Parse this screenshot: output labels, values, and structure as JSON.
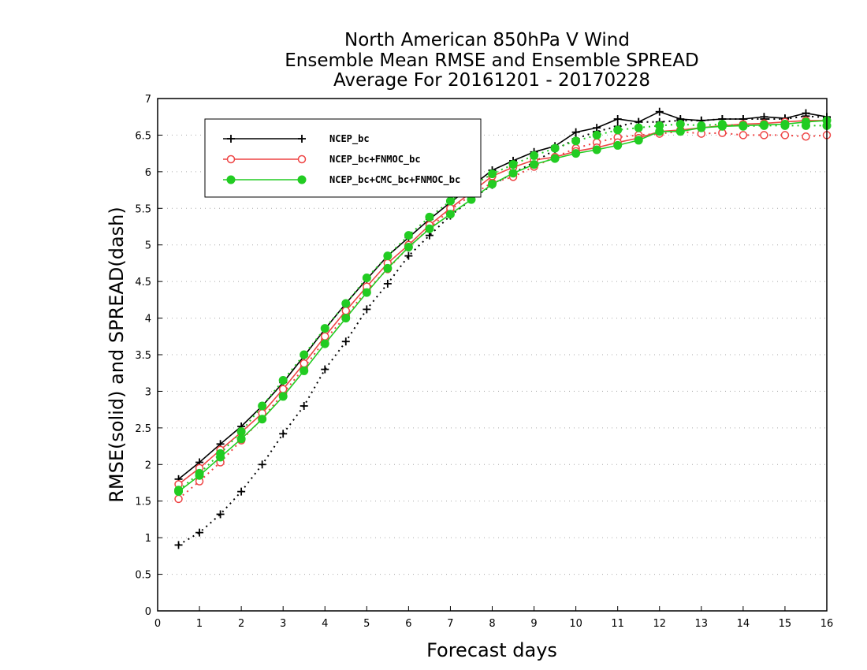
{
  "chart_data": {
    "type": "line",
    "title": [
      "North American 850hPa V Wind",
      "Ensemble Mean RMSE and Ensemble SPREAD",
      "Average For 20161201 - 20170228"
    ],
    "xlabel": "Forecast days",
    "ylabel": "RMSE(solid) and SPREAD(dash)",
    "xlim": [
      0,
      16
    ],
    "ylim": [
      0,
      7
    ],
    "x_ticks": [
      0,
      1,
      2,
      3,
      4,
      5,
      6,
      7,
      8,
      9,
      10,
      11,
      12,
      13,
      14,
      15,
      16
    ],
    "y_ticks": [
      0,
      0.5,
      1,
      1.5,
      2,
      2.5,
      3,
      3.5,
      4,
      4.5,
      5,
      5.5,
      6,
      6.5,
      7
    ],
    "grid": "horizontal dotted",
    "legend_position": "top-left",
    "x": [
      0.5,
      1,
      1.5,
      2,
      2.5,
      3,
      3.5,
      4,
      4.5,
      5,
      5.5,
      6,
      6.5,
      7,
      7.5,
      8,
      8.5,
      9,
      9.5,
      10,
      10.5,
      11,
      11.5,
      12,
      12.5,
      13,
      13.5,
      14,
      14.5,
      15,
      15.5,
      16
    ],
    "series": [
      {
        "name": "NCEP_bc",
        "color": "#000000",
        "marker": "plus",
        "rmse": [
          1.8,
          2.03,
          2.28,
          2.52,
          2.8,
          3.12,
          3.48,
          3.85,
          4.2,
          4.53,
          4.85,
          5.1,
          5.35,
          5.58,
          5.8,
          6.02,
          6.15,
          6.27,
          6.35,
          6.54,
          6.6,
          6.72,
          6.68,
          6.82,
          6.72,
          6.7,
          6.72,
          6.72,
          6.75,
          6.73,
          6.8,
          6.75
        ],
        "spread": [
          0.9,
          1.07,
          1.32,
          1.63,
          2.0,
          2.42,
          2.8,
          3.3,
          3.68,
          4.12,
          4.47,
          4.85,
          5.13,
          5.4,
          5.62,
          5.82,
          5.98,
          6.13,
          6.3,
          6.45,
          6.55,
          6.62,
          6.68,
          6.68,
          6.7,
          6.7,
          6.72,
          6.72,
          6.72,
          6.72,
          6.76,
          6.74
        ]
      },
      {
        "name": "NCEP_bc+FNMOC_bc",
        "color": "#ee4444",
        "marker": "open-circle",
        "rmse": [
          1.73,
          1.95,
          2.2,
          2.44,
          2.7,
          3.03,
          3.38,
          3.75,
          4.1,
          4.43,
          4.75,
          5.0,
          5.27,
          5.5,
          5.72,
          5.94,
          6.06,
          6.16,
          6.2,
          6.28,
          6.33,
          6.4,
          6.46,
          6.55,
          6.57,
          6.6,
          6.63,
          6.65,
          6.66,
          6.68,
          6.7,
          6.7
        ],
        "spread": [
          1.53,
          1.77,
          2.03,
          2.33,
          2.63,
          2.97,
          3.32,
          3.7,
          4.03,
          4.38,
          4.67,
          4.97,
          5.23,
          5.48,
          5.68,
          5.85,
          5.93,
          6.07,
          6.2,
          6.32,
          6.4,
          6.47,
          6.5,
          6.52,
          6.55,
          6.52,
          6.53,
          6.5,
          6.5,
          6.5,
          6.48,
          6.5
        ]
      },
      {
        "name": "NCEP_bc+CMC_bc+FNMOC_bc",
        "color": "#22cc22",
        "marker": "filled-circle",
        "rmse": [
          1.63,
          1.85,
          2.1,
          2.35,
          2.62,
          2.93,
          3.28,
          3.65,
          4.0,
          4.35,
          4.68,
          4.97,
          5.22,
          5.42,
          5.62,
          5.83,
          5.98,
          6.1,
          6.18,
          6.25,
          6.3,
          6.36,
          6.43,
          6.55,
          6.55,
          6.6,
          6.62,
          6.63,
          6.64,
          6.65,
          6.68,
          6.7
        ],
        "spread": [
          1.65,
          1.88,
          2.15,
          2.45,
          2.8,
          3.15,
          3.5,
          3.86,
          4.2,
          4.55,
          4.85,
          5.13,
          5.38,
          5.6,
          5.8,
          5.97,
          6.1,
          6.22,
          6.32,
          6.42,
          6.5,
          6.57,
          6.6,
          6.63,
          6.65,
          6.63,
          6.65,
          6.62,
          6.63,
          6.63,
          6.63,
          6.63
        ]
      }
    ]
  }
}
